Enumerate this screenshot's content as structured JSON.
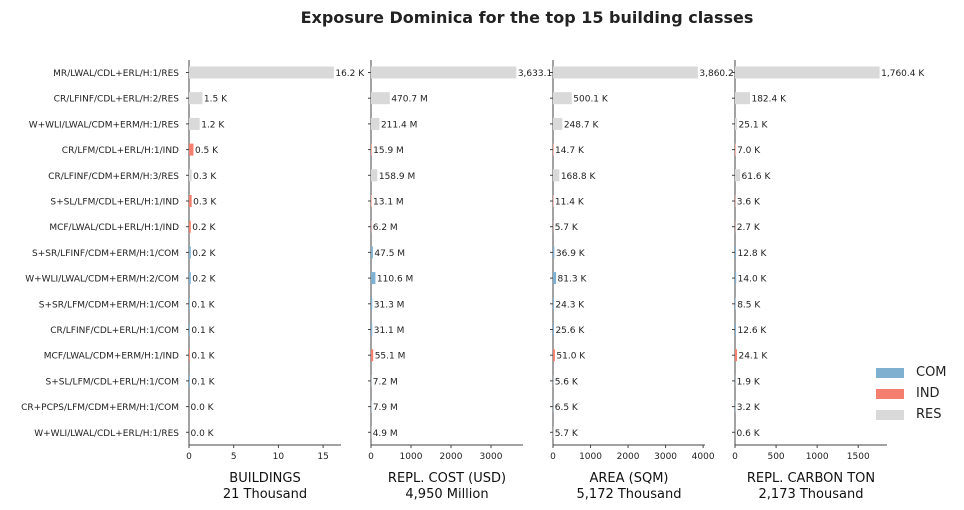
{
  "chart_data": {
    "type": "bar",
    "title": "Exposure Dominica for the top 15 building classes",
    "categories": [
      "MR/LWAL/CDL+ERL/H:1/RES",
      "CR/LFINF/CDL+ERL/H:2/RES",
      "W+WLI/LWAL/CDM+ERM/H:1/RES",
      "CR/LFM/CDL+ERL/H:1/IND",
      "CR/LFINF/CDM+ERM/H:3/RES",
      "S+SL/LFM/CDL+ERL/H:1/IND",
      "MCF/LWAL/CDL+ERL/H:1/IND",
      "S+SR/LFINF/CDM+ERM/H:1/COM",
      "W+WLI/LWAL/CDM+ERM/H:2/COM",
      "S+SR/LFM/CDM+ERM/H:1/COM",
      "CR/LFINF/CDL+ERL/H:1/COM",
      "MCF/LWAL/CDM+ERM/H:1/IND",
      "S+SL/LFM/CDL+ERL/H:1/COM",
      "CR+PCPS/LFM/CDM+ERM/H:1/COM",
      "W+WLI/LWAL/CDL+ERL/H:1/RES"
    ],
    "occupancy": [
      "RES",
      "RES",
      "RES",
      "IND",
      "RES",
      "IND",
      "IND",
      "COM",
      "COM",
      "COM",
      "COM",
      "IND",
      "COM",
      "COM",
      "RES"
    ],
    "legend": {
      "placement": "bottom-right",
      "entries": [
        {
          "name": "COM",
          "color": "#7fb0d0"
        },
        {
          "name": "IND",
          "color": "#f57f6e"
        },
        {
          "name": "RES",
          "color": "#d9d9d9"
        }
      ]
    },
    "panels": [
      {
        "xlabel": "BUILDINGS",
        "total": "21 Thousand",
        "xlim": [
          0,
          17
        ],
        "xticks": [
          0,
          5,
          10,
          15
        ],
        "values": [
          16.2,
          1.5,
          1.2,
          0.5,
          0.3,
          0.3,
          0.2,
          0.2,
          0.2,
          0.1,
          0.1,
          0.1,
          0.1,
          0.0,
          0.0
        ],
        "labels": [
          "16.2 K",
          "1.5 K",
          "1.2 K",
          "0.5 K",
          "0.3 K",
          "0.3 K",
          "0.2 K",
          "0.2 K",
          "0.2 K",
          "0.1 K",
          "0.1 K",
          "0.1 K",
          "0.1 K",
          "0.0 K",
          "0.0 K"
        ]
      },
      {
        "xlabel": "REPL. COST (USD)",
        "total": "4,950 Million",
        "xlim": [
          0,
          3800
        ],
        "xticks": [
          0,
          1000,
          2000,
          3000
        ],
        "values": [
          3633.1,
          470.7,
          211.4,
          15.9,
          158.9,
          13.1,
          6.2,
          47.5,
          110.6,
          31.3,
          31.1,
          55.1,
          7.2,
          7.9,
          4.9
        ],
        "labels": [
          "3,633.1",
          "470.7 M",
          "211.4 M",
          "15.9 M",
          "158.9 M",
          "13.1 M",
          "6.2 M",
          "47.5 M",
          "110.6 M",
          "31.3 M",
          "31.1 M",
          "55.1 M",
          "7.2 M",
          "7.9 M",
          "4.9 M"
        ]
      },
      {
        "xlabel": "AREA (SQM)",
        "total": "5,172 Thousand",
        "xlim": [
          0,
          4050
        ],
        "xticks": [
          0,
          1000,
          2000,
          3000,
          4000
        ],
        "values": [
          3860.2,
          500.1,
          248.7,
          14.7,
          168.8,
          11.4,
          5.7,
          36.9,
          81.3,
          24.3,
          25.6,
          51.0,
          5.6,
          6.5,
          5.7
        ],
        "labels": [
          "3,860.2",
          "500.1 K",
          "248.7 K",
          "14.7 K",
          "168.8 K",
          "11.4 K",
          "5.7 K",
          "36.9 K",
          "81.3 K",
          "24.3 K",
          "25.6 K",
          "51.0 K",
          "5.6 K",
          "6.5 K",
          "5.7 K"
        ]
      },
      {
        "xlabel": "REPL. CARBON TON",
        "total": "2,173 Thousand",
        "xlim": [
          0,
          1850
        ],
        "xticks": [
          0,
          500,
          1000,
          1500
        ],
        "values": [
          1760.4,
          182.4,
          25.1,
          7.0,
          61.6,
          3.6,
          2.7,
          12.8,
          14.0,
          8.5,
          12.6,
          24.1,
          1.9,
          3.2,
          0.6
        ],
        "labels": [
          "1,760.4 K",
          "182.4 K",
          "25.1 K",
          "7.0 K",
          "61.6 K",
          "3.6 K",
          "2.7 K",
          "12.8 K",
          "14.0 K",
          "8.5 K",
          "12.6 K",
          "24.1 K",
          "1.9 K",
          "3.2 K",
          "0.6 K"
        ]
      }
    ]
  }
}
